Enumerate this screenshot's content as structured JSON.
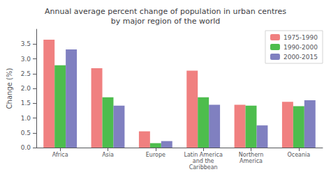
{
  "chart_data": {
    "type": "bar",
    "title": "Annual average percent change of population in urban centres\nby major region of the world",
    "categories": [
      "Africa",
      "Asia",
      "Europe",
      "Latin America\nand the\nCaribbean",
      "Northern\nAmerica",
      "Oceania"
    ],
    "series": [
      {
        "name": "1975-1990",
        "color": "#F08080",
        "values": [
          3.65,
          2.68,
          0.55,
          2.6,
          1.45,
          1.55
        ]
      },
      {
        "name": "1990-2000",
        "color": "#4DBD4D",
        "values": [
          2.78,
          1.7,
          0.15,
          1.7,
          1.42,
          1.4
        ]
      },
      {
        "name": "2000-2015",
        "color": "#8080C0",
        "values": [
          3.32,
          1.42,
          0.22,
          1.45,
          0.75,
          1.6
        ]
      }
    ],
    "ylabel": "Change (%)",
    "ylim": [
      0,
      4.0
    ],
    "yticks": [
      {
        "value": 0,
        "label": "0.0"
      },
      0.5,
      {
        "value": 1,
        "label": "1.0"
      },
      1.5,
      {
        "value": 2,
        "label": "2.0"
      },
      2.5,
      {
        "value": 3,
        "label": "3.0"
      },
      3.5
    ],
    "grid": false,
    "legend": "upper right"
  }
}
